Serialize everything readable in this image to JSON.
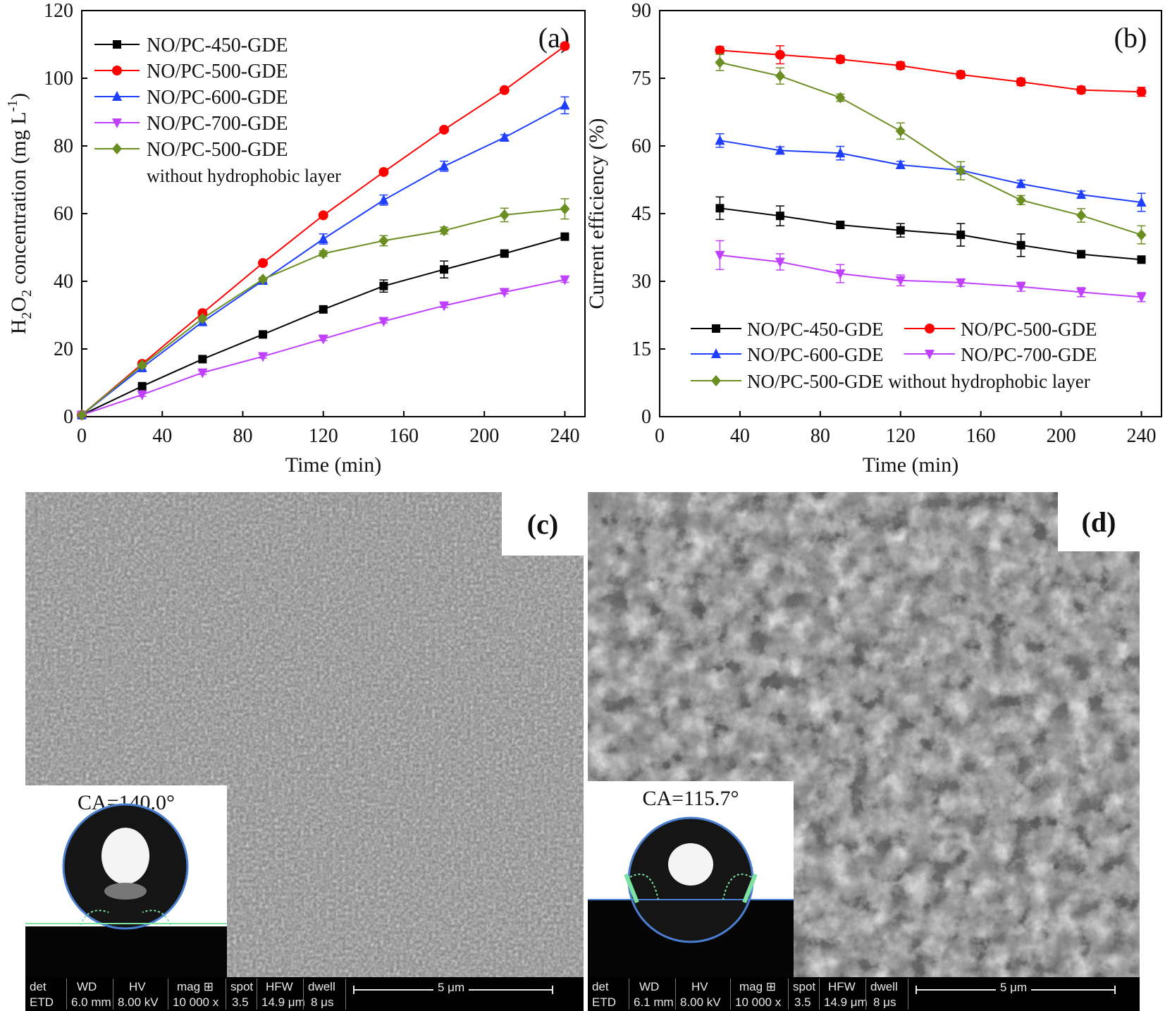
{
  "chart_data": [
    {
      "type": "line",
      "panel_label": "(a)",
      "title": "",
      "xlabel": "Time (min)",
      "ylabel": "H2O2 concentration (mg L-1)",
      "xlim": [
        0,
        250
      ],
      "ylim": [
        0,
        120
      ],
      "xticks": [
        0,
        40,
        80,
        120,
        160,
        200,
        240
      ],
      "yticks": [
        0,
        20,
        40,
        60,
        80,
        100,
        120
      ],
      "legend_position": "top-left",
      "x": [
        0,
        30,
        60,
        90,
        120,
        150,
        180,
        210,
        240
      ],
      "series": [
        {
          "name": "NO/PC-450-GDE",
          "color": "#000000",
          "marker": "square",
          "values": [
            0.5,
            9,
            17,
            24.3,
            31.7,
            38.6,
            43.5,
            48.2,
            53.2
          ],
          "errors": [
            0,
            0.5,
            0.5,
            0.5,
            0.8,
            1.8,
            2.5,
            0.5,
            0.5
          ]
        },
        {
          "name": "NO/PC-500-GDE",
          "color": "#ff0000",
          "marker": "circle",
          "values": [
            0.5,
            15.6,
            30.6,
            45.4,
            59.5,
            72.3,
            84.8,
            96.5,
            109.5
          ],
          "errors": [
            0,
            0.5,
            0.5,
            0.5,
            0.5,
            0.5,
            0.5,
            0.5,
            0.8
          ]
        },
        {
          "name": "NO/PC-600-GDE",
          "color": "#1f3fff",
          "marker": "triangle-up",
          "values": [
            0.5,
            14.5,
            28,
            40.2,
            52.5,
            64,
            74,
            82.5,
            92
          ],
          "errors": [
            0,
            1.2,
            0.8,
            0.5,
            1.5,
            1.5,
            1.5,
            0.8,
            2.5
          ]
        },
        {
          "name": "NO/PC-700-GDE",
          "color": "#c040ff",
          "marker": "triangle-down",
          "values": [
            0.5,
            6.5,
            13,
            17.8,
            23,
            28.2,
            32.8,
            36.8,
            40.5
          ],
          "errors": [
            0,
            0.5,
            0.5,
            0.5,
            0.5,
            0.5,
            0.5,
            0.5,
            0.8
          ]
        },
        {
          "name": "NO/PC-500-GDE",
          "name_line2": "without hydrophobic layer",
          "color": "#6b8e23",
          "marker": "diamond",
          "values": [
            0.5,
            15.2,
            29,
            40.6,
            48.2,
            52,
            55,
            59.6,
            61.4
          ],
          "errors": [
            0,
            0.5,
            0.5,
            0.5,
            0.8,
            1.5,
            1,
            2,
            3
          ]
        }
      ]
    },
    {
      "type": "line",
      "panel_label": "(b)",
      "title": "",
      "xlabel": "Time (min)",
      "ylabel": "Current efficiency (%)",
      "xlim": [
        0,
        250
      ],
      "ylim": [
        0,
        90
      ],
      "xticks": [
        0,
        40,
        80,
        120,
        160,
        200,
        240
      ],
      "yticks": [
        0,
        15,
        30,
        45,
        60,
        75,
        90
      ],
      "legend_position": "bottom",
      "x": [
        30,
        60,
        90,
        120,
        150,
        180,
        210,
        240
      ],
      "series": [
        {
          "name": "NO/PC-450-GDE",
          "color": "#000000",
          "marker": "square",
          "values": [
            46.2,
            44.5,
            42.5,
            41.3,
            40.3,
            38,
            36,
            34.8
          ],
          "errors": [
            2.5,
            2.2,
            0.8,
            1.5,
            2.5,
            2.5,
            0.8,
            0.8
          ]
        },
        {
          "name": "NO/PC-500-GDE",
          "color": "#ff0000",
          "marker": "circle",
          "values": [
            81.2,
            80.2,
            79.2,
            77.8,
            75.8,
            74.2,
            72.4,
            72
          ],
          "errors": [
            0.8,
            2,
            0.8,
            0.8,
            0.8,
            0.8,
            0.8,
            1
          ]
        },
        {
          "name": "NO/PC-600-GDE",
          "color": "#1f3fff",
          "marker": "triangle-up",
          "values": [
            61.2,
            59,
            58.4,
            55.8,
            54.6,
            51.6,
            49.2,
            47.5
          ],
          "errors": [
            1.5,
            0.8,
            1.5,
            0.8,
            0.8,
            0.8,
            0.8,
            2
          ]
        },
        {
          "name": "NO/PC-700-GDE",
          "color": "#c040ff",
          "marker": "triangle-down",
          "values": [
            35.8,
            34.3,
            31.7,
            30.2,
            29.7,
            28.8,
            27.6,
            26.5
          ],
          "errors": [
            3.2,
            1.8,
            2,
            1.2,
            0.8,
            1,
            1,
            1
          ]
        },
        {
          "name": "NO/PC-500-GDE without hydrophobic layer",
          "color": "#6b8e23",
          "marker": "diamond",
          "values": [
            78.5,
            75.5,
            70.7,
            63.3,
            54.5,
            48,
            44.6,
            40.3
          ],
          "errors": [
            1.8,
            1.8,
            0.8,
            1.8,
            2,
            1,
            1.5,
            2
          ]
        }
      ]
    }
  ],
  "sem_panels": [
    {
      "label": "(c)",
      "contact_angle": "CA=140.0°",
      "info": {
        "det": "ETD",
        "wd": "6.0 mm",
        "hv": "8.00 kV",
        "mag": "10 000 x",
        "spot": "3.5",
        "hfw": "14.9 μm",
        "dwell": "8 μs"
      },
      "scale": "5 μm"
    },
    {
      "label": "(d)",
      "contact_angle": "CA=115.7°",
      "info": {
        "det": "ETD",
        "wd": "6.1 mm",
        "hv": "8.00 kV",
        "mag": "10 000 x",
        "spot": "3.5",
        "hfw": "14.9 μm",
        "dwell": "8 μs"
      },
      "scale": "5 μm"
    }
  ],
  "infobar_headers": {
    "det": "det",
    "wd": "WD",
    "hv": "HV",
    "mag": "mag ⊞",
    "spot": "spot",
    "hfw": "HFW",
    "dwell": "dwell"
  }
}
